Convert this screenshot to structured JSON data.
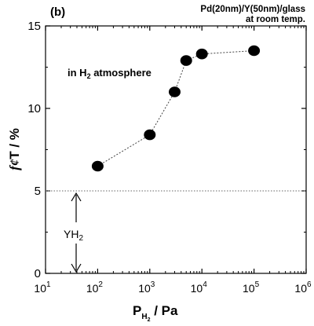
{
  "chart_data": {
    "type": "scatter",
    "panel_label": "(b)",
    "sample_line1": "Pd(20nm)/Y(50nm)/glass",
    "sample_line2": "at room temp.",
    "annotation": "in H2 atmosphere",
    "annotation_parts": {
      "prefix": "in H",
      "sub": "2",
      "suffix": " atmosphere"
    },
    "ylabel": "f¢T / %",
    "ylabel_parts": {
      "f": "f",
      "c": "¢",
      "rest": "T / %"
    },
    "xlabel": "PH2 / Pa",
    "xlabel_parts": {
      "p": "P",
      "sub": "H",
      "subsub": "2",
      "rest": " / Pa"
    },
    "x_scale": "log",
    "xlim": [
      10,
      1000000
    ],
    "ylim": [
      0,
      15
    ],
    "x_ticks": [
      {
        "base": "10",
        "exp": "1",
        "value": 10
      },
      {
        "base": "10",
        "exp": "2",
        "value": 100
      },
      {
        "base": "10",
        "exp": "3",
        "value": 1000
      },
      {
        "base": "10",
        "exp": "4",
        "value": 10000
      },
      {
        "base": "10",
        "exp": "5",
        "value": 100000
      },
      {
        "base": "10",
        "exp": "6",
        "value": 1000000
      }
    ],
    "y_ticks": [
      "0",
      "5",
      "10",
      "15"
    ],
    "series": [
      {
        "x": [
          100,
          1000,
          3000,
          5000,
          10000,
          100000
        ],
        "y": [
          6.5,
          8.4,
          11.0,
          12.9,
          13.3,
          13.5
        ]
      }
    ],
    "reference_line_y": 5,
    "yh2_label": {
      "text": "YH2",
      "main": "YH",
      "sub": "2"
    }
  }
}
